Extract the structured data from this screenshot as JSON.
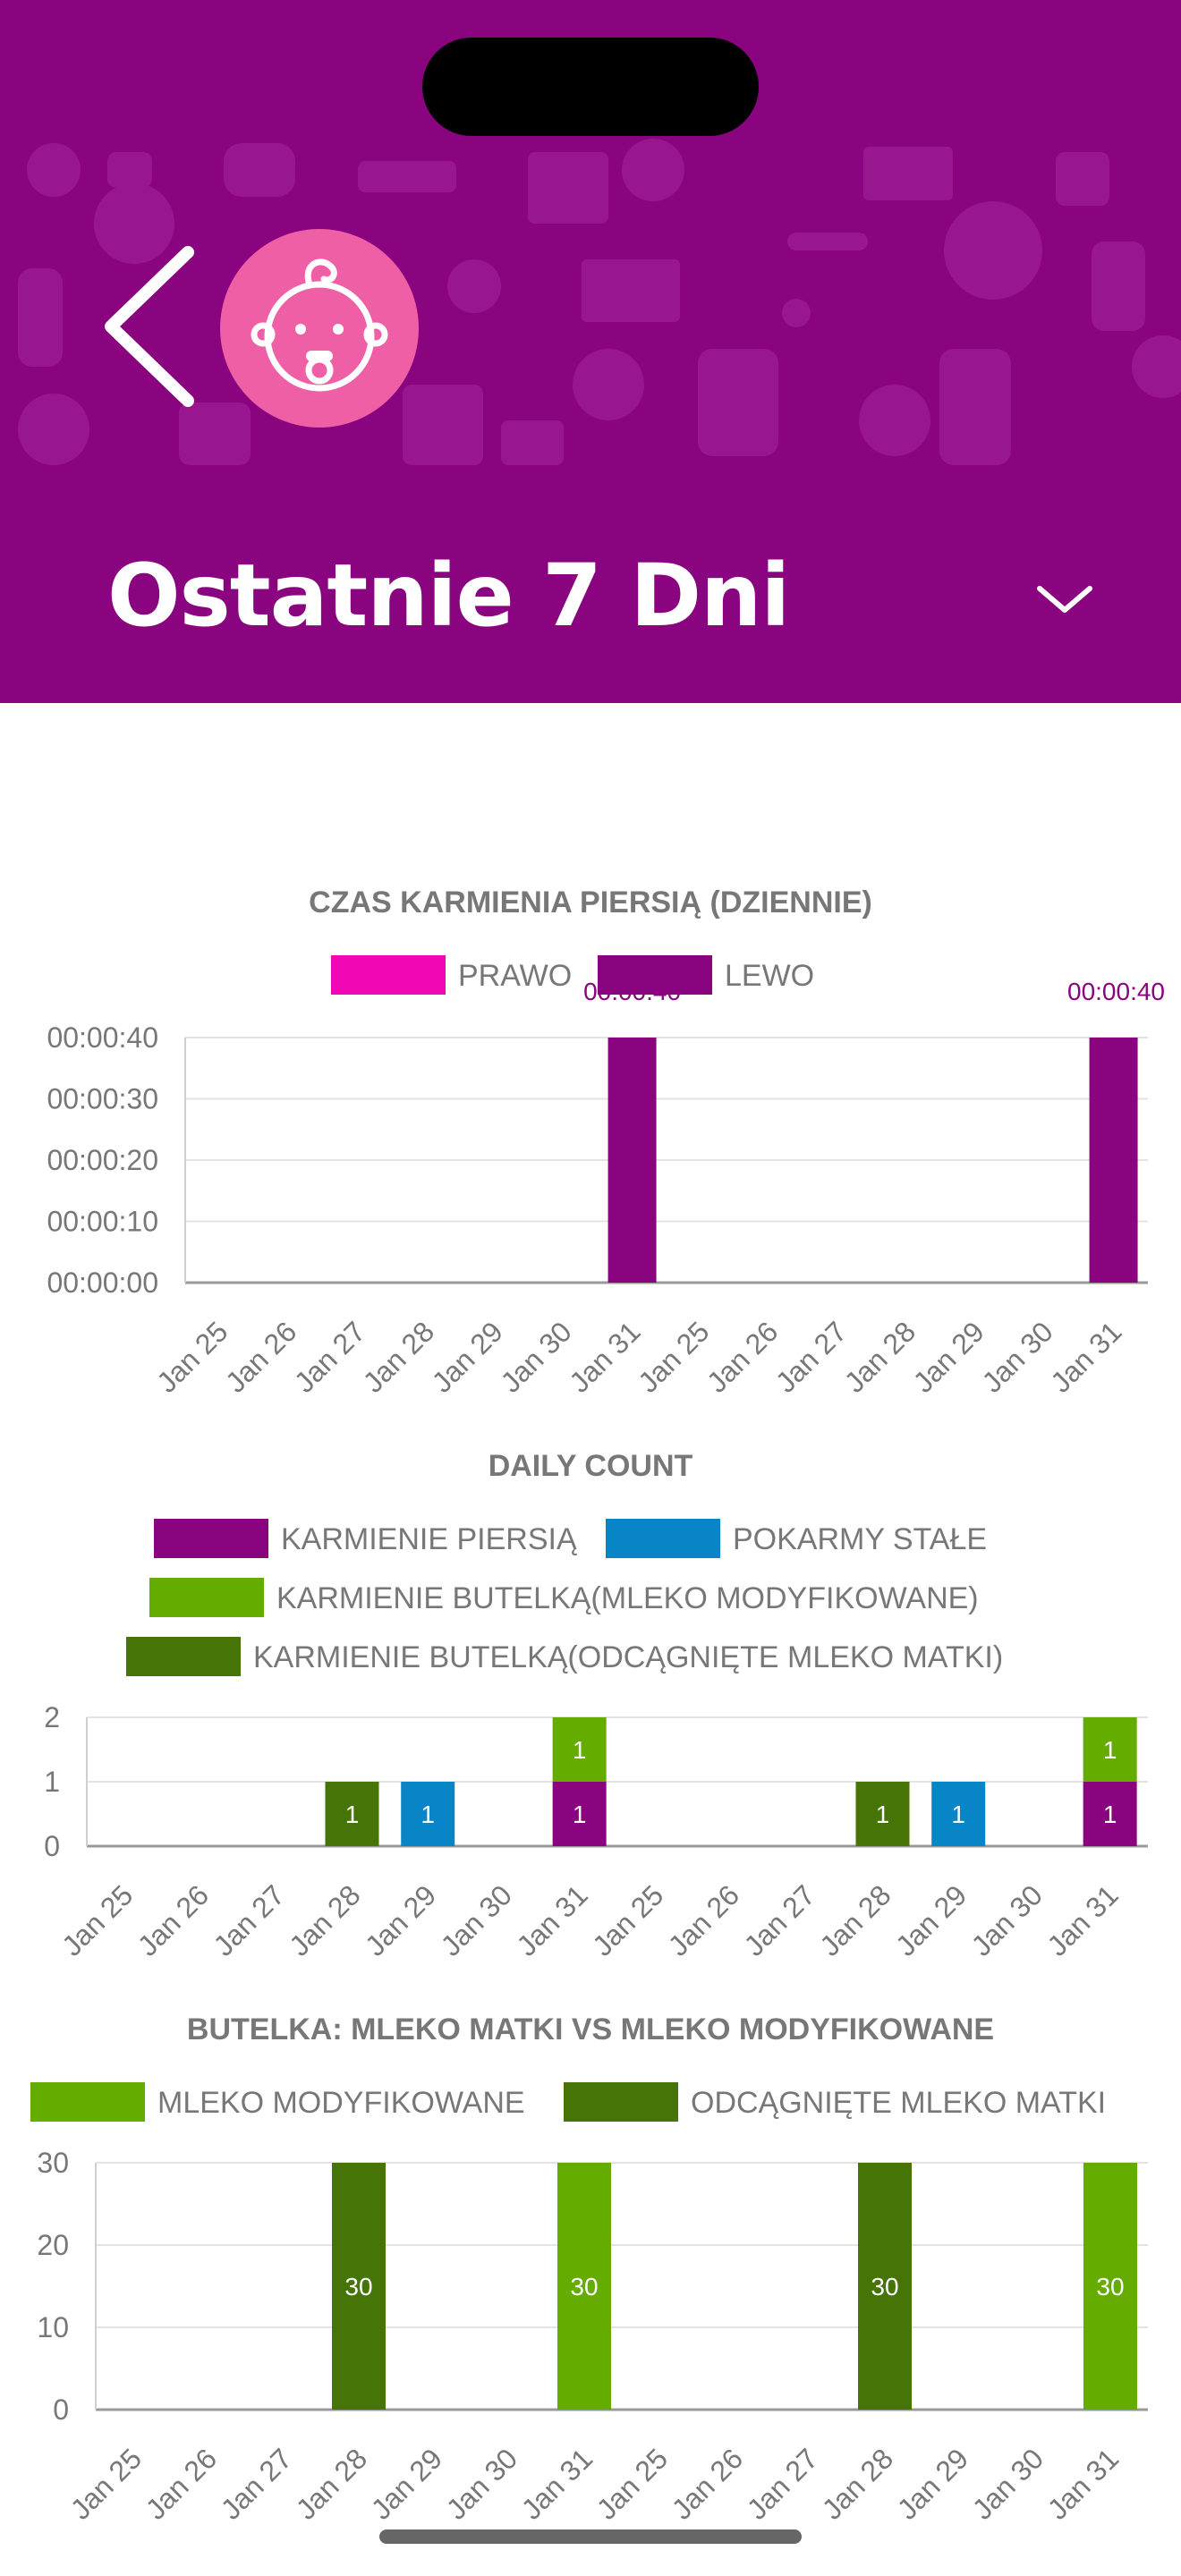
{
  "header": {
    "title": "Ostatnie 7 Dni",
    "back_icon": "chevron-left-icon",
    "avatar_icon": "baby-face-icon",
    "dropdown_icon": "chevron-down-icon",
    "background_color": "#8a037f",
    "avatar_color": "#ee5fa6"
  },
  "chart_data": [
    {
      "type": "bar",
      "title": "CZAS KARMIENIA PIERSIĄ (DZIENNIE)",
      "categories": [
        "Jan 25",
        "Jan 26",
        "Jan 27",
        "Jan 28",
        "Jan 29",
        "Jan 30",
        "Jan 31",
        "Jan 25",
        "Jan 26",
        "Jan 27",
        "Jan 28",
        "Jan 29",
        "Jan 30",
        "Jan 31"
      ],
      "y_ticks": [
        "00:00:00",
        "00:00:10",
        "00:00:20",
        "00:00:30",
        "00:00:40"
      ],
      "ylim": [
        0,
        40
      ],
      "series": [
        {
          "name": "PRAWO",
          "color": "#f107b3",
          "values": [
            0,
            0,
            0,
            0,
            0,
            0,
            0,
            0,
            0,
            0,
            0,
            0,
            0,
            0
          ]
        },
        {
          "name": "LEWO",
          "color": "#8a037f",
          "values": [
            0,
            0,
            0,
            0,
            0,
            0,
            40,
            0,
            0,
            0,
            0,
            0,
            0,
            40
          ]
        }
      ],
      "value_labels": [
        "00:00:40",
        "00:00:40"
      ],
      "legend": "top-center",
      "grid": true
    },
    {
      "type": "bar",
      "title": "DAILY COUNT",
      "stacked": true,
      "categories": [
        "Jan 25",
        "Jan 26",
        "Jan 27",
        "Jan 28",
        "Jan 29",
        "Jan 30",
        "Jan 31",
        "Jan 25",
        "Jan 26",
        "Jan 27",
        "Jan 28",
        "Jan 29",
        "Jan 30",
        "Jan 31"
      ],
      "ylim": [
        0,
        2
      ],
      "y_ticks": [
        "0",
        "1",
        "2"
      ],
      "series": [
        {
          "name": "KARMIENIE PIERSIĄ",
          "color": "#8a037f",
          "values": [
            0,
            0,
            0,
            0,
            0,
            0,
            1,
            0,
            0,
            0,
            0,
            0,
            0,
            1
          ]
        },
        {
          "name": "POKARMY STAŁE",
          "color": "#0785c6",
          "values": [
            0,
            0,
            0,
            0,
            1,
            0,
            0,
            0,
            0,
            0,
            0,
            1,
            0,
            0
          ]
        },
        {
          "name": "KARMIENIE BUTELKĄ(MLEKO MODYFIKOWANE)",
          "color": "#64ac00",
          "values": [
            0,
            0,
            0,
            0,
            0,
            0,
            1,
            0,
            0,
            0,
            0,
            0,
            0,
            1
          ]
        },
        {
          "name": "KARMIENIE BUTELKĄ(ODCĄGNIĘTE MLEKO MATKI)",
          "color": "#467406",
          "values": [
            0,
            0,
            0,
            1,
            0,
            0,
            0,
            0,
            0,
            0,
            1,
            0,
            0,
            0
          ]
        }
      ],
      "legend": "top-center",
      "grid": true
    },
    {
      "type": "bar",
      "title": "BUTELKA: MLEKO MATKI VS MLEKO MODYFIKOWANE",
      "categories": [
        "Jan 25",
        "Jan 26",
        "Jan 27",
        "Jan 28",
        "Jan 29",
        "Jan 30",
        "Jan 31",
        "Jan 25",
        "Jan 26",
        "Jan 27",
        "Jan 28",
        "Jan 29",
        "Jan 30",
        "Jan 31"
      ],
      "ylim": [
        0,
        30
      ],
      "y_ticks": [
        "0",
        "10",
        "20",
        "30"
      ],
      "series": [
        {
          "name": "MLEKO MODYFIKOWANE",
          "color": "#64ac00",
          "values": [
            0,
            0,
            0,
            0,
            0,
            0,
            30,
            0,
            0,
            0,
            0,
            0,
            0,
            30
          ]
        },
        {
          "name": "ODCĄGNIĘTE MLEKO MATKI",
          "color": "#467406",
          "values": [
            0,
            0,
            0,
            30,
            0,
            0,
            0,
            0,
            0,
            0,
            30,
            0,
            0,
            0
          ]
        }
      ],
      "legend": "top-center",
      "grid": true
    }
  ]
}
